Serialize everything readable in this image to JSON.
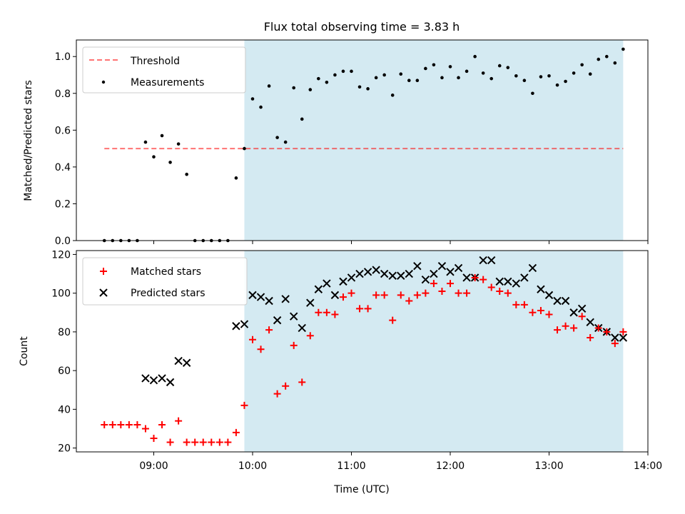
{
  "colors": {
    "shade": "#add8e6",
    "threshold": "#ff0000",
    "matched": "#ff0000",
    "predicted": "#000000",
    "measurement": "#000000"
  },
  "chart_data": [
    {
      "type": "scatter",
      "title": "Flux total observing time = 3.83 h",
      "xlabel": "",
      "ylabel": "Matched/Predicted stars",
      "x_is_time": true,
      "xlim": [
        "08:13",
        "14:00"
      ],
      "ylim": [
        0,
        1.09
      ],
      "yticks": [
        0.0,
        0.2,
        0.4,
        0.6,
        0.8,
        1.0
      ],
      "ytick_labels": [
        "0.0",
        "0.2",
        "0.4",
        "0.6",
        "0.8",
        "1.0"
      ],
      "xticks": [
        "09:00",
        "10:00",
        "11:00",
        "12:00",
        "13:00",
        "14:00"
      ],
      "xtick_labels_visible": false,
      "shaded_region": [
        "09:55",
        "13:45"
      ],
      "legend": {
        "placement": "upper left",
        "entries": [
          "Threshold",
          "Measurements"
        ]
      },
      "threshold": {
        "name": "Threshold",
        "value": 0.5,
        "x_range": [
          "08:30",
          "13:45"
        ],
        "style": "dashed"
      },
      "measurements": {
        "name": "Measurements",
        "x": [
          "08:30",
          "08:35",
          "08:40",
          "08:45",
          "08:50",
          "08:55",
          "09:00",
          "09:05",
          "09:10",
          "09:15",
          "09:20",
          "09:25",
          "09:30",
          "09:35",
          "09:40",
          "09:45",
          "09:50",
          "09:55",
          "10:00",
          "10:05",
          "10:10",
          "10:15",
          "10:20",
          "10:25",
          "10:30",
          "10:35",
          "10:40",
          "10:45",
          "10:50",
          "10:55",
          "11:00",
          "11:05",
          "11:10",
          "11:15",
          "11:20",
          "11:25",
          "11:30",
          "11:35",
          "11:40",
          "11:45",
          "11:50",
          "11:55",
          "12:00",
          "12:05",
          "12:10",
          "12:15",
          "12:20",
          "12:25",
          "12:30",
          "12:35",
          "12:40",
          "12:45",
          "12:50",
          "12:55",
          "13:00",
          "13:05",
          "13:10",
          "13:15",
          "13:20",
          "13:25",
          "13:30",
          "13:35",
          "13:40",
          "13:45"
        ],
        "y": [
          0.0,
          0.0,
          0.0,
          0.0,
          0.0,
          0.535,
          0.455,
          0.57,
          0.425,
          0.525,
          0.36,
          0.0,
          0.0,
          0.0,
          0.0,
          0.0,
          0.34,
          0.5,
          0.77,
          0.725,
          0.84,
          0.56,
          0.535,
          0.83,
          0.66,
          0.82,
          0.88,
          0.86,
          0.9,
          0.92,
          0.92,
          0.835,
          0.825,
          0.885,
          0.9,
          0.79,
          0.905,
          0.87,
          0.87,
          0.935,
          0.955,
          0.885,
          0.945,
          0.885,
          0.92,
          1.0,
          0.91,
          0.88,
          0.95,
          0.94,
          0.895,
          0.87,
          0.8,
          0.89,
          0.895,
          0.845,
          0.865,
          0.91,
          0.955,
          0.905,
          0.985,
          1.0,
          0.965,
          1.04
        ]
      }
    },
    {
      "type": "scatter",
      "title": "",
      "xlabel": "Time (UTC)",
      "ylabel": "Count",
      "x_is_time": true,
      "xlim": [
        "08:13",
        "14:00"
      ],
      "ylim": [
        18,
        122
      ],
      "yticks": [
        20,
        40,
        60,
        80,
        100,
        120
      ],
      "ytick_labels": [
        "20",
        "40",
        "60",
        "80",
        "100",
        "120"
      ],
      "xticks": [
        "09:00",
        "10:00",
        "11:00",
        "12:00",
        "13:00",
        "14:00"
      ],
      "xtick_labels": [
        "09:00",
        "10:00",
        "11:00",
        "12:00",
        "13:00",
        "14:00"
      ],
      "shaded_region": [
        "09:55",
        "13:45"
      ],
      "legend": {
        "placement": "upper left",
        "entries": [
          "Matched stars",
          "Predicted stars"
        ]
      },
      "series": [
        {
          "name": "Matched stars",
          "marker": "+",
          "x": [
            "08:30",
            "08:35",
            "08:40",
            "08:45",
            "08:50",
            "08:55",
            "09:00",
            "09:05",
            "09:10",
            "09:15",
            "09:20",
            "09:25",
            "09:30",
            "09:35",
            "09:40",
            "09:45",
            "09:50",
            "09:55",
            "10:00",
            "10:05",
            "10:10",
            "10:15",
            "10:20",
            "10:25",
            "10:30",
            "10:35",
            "10:40",
            "10:45",
            "10:50",
            "10:55",
            "11:00",
            "11:05",
            "11:10",
            "11:15",
            "11:20",
            "11:25",
            "11:30",
            "11:35",
            "11:40",
            "11:45",
            "11:50",
            "11:55",
            "12:00",
            "12:05",
            "12:10",
            "12:15",
            "12:20",
            "12:25",
            "12:30",
            "12:35",
            "12:40",
            "12:45",
            "12:50",
            "12:55",
            "13:00",
            "13:05",
            "13:10",
            "13:15",
            "13:20",
            "13:25",
            "13:30",
            "13:35",
            "13:40",
            "13:45"
          ],
          "y": [
            32,
            32,
            32,
            32,
            32,
            30,
            25,
            32,
            23,
            34,
            23,
            23,
            23,
            23,
            23,
            23,
            28,
            42,
            76,
            71,
            81,
            48,
            52,
            73,
            54,
            78,
            90,
            90,
            89,
            98,
            100,
            92,
            92,
            99,
            99,
            86,
            99,
            96,
            99,
            100,
            105,
            101,
            105,
            100,
            100,
            108,
            107,
            103,
            101,
            100,
            94,
            94,
            90,
            91,
            89,
            81,
            83,
            82,
            88,
            77,
            82,
            80,
            74,
            80
          ]
        },
        {
          "name": "Predicted stars",
          "marker": "x",
          "x": [
            "08:55",
            "09:00",
            "09:05",
            "09:10",
            "09:15",
            "09:20",
            "09:25",
            "09:30",
            "09:35",
            "09:40",
            "09:45",
            "09:50",
            "09:55",
            "10:00",
            "10:05",
            "10:10",
            "10:15",
            "10:20",
            "10:25",
            "10:30",
            "10:35",
            "10:40",
            "10:45",
            "10:50",
            "10:55",
            "11:00",
            "11:05",
            "11:10",
            "11:15",
            "11:20",
            "11:25",
            "11:30",
            "11:35",
            "11:40",
            "11:45",
            "11:50",
            "11:55",
            "12:00",
            "12:05",
            "12:10",
            "12:15",
            "12:20",
            "12:25",
            "12:30",
            "12:35",
            "12:40",
            "12:45",
            "12:50",
            "12:55",
            "13:00",
            "13:05",
            "13:10",
            "13:15",
            "13:20",
            "13:25",
            "13:30",
            "13:35",
            "13:40",
            "13:45"
          ],
          "y": [
            56,
            55,
            56,
            54,
            65,
            64,
            null,
            null,
            null,
            null,
            null,
            83,
            84,
            99,
            98,
            96,
            86,
            97,
            88,
            82,
            95,
            102,
            105,
            99,
            106,
            108,
            110,
            111,
            112,
            110,
            109,
            109,
            110,
            114,
            107,
            110,
            114,
            111,
            113,
            108,
            108,
            117,
            117,
            106,
            106,
            105,
            108,
            113,
            102,
            99,
            96,
            96,
            90,
            92,
            85,
            82,
            80,
            77,
            77
          ]
        }
      ]
    }
  ]
}
